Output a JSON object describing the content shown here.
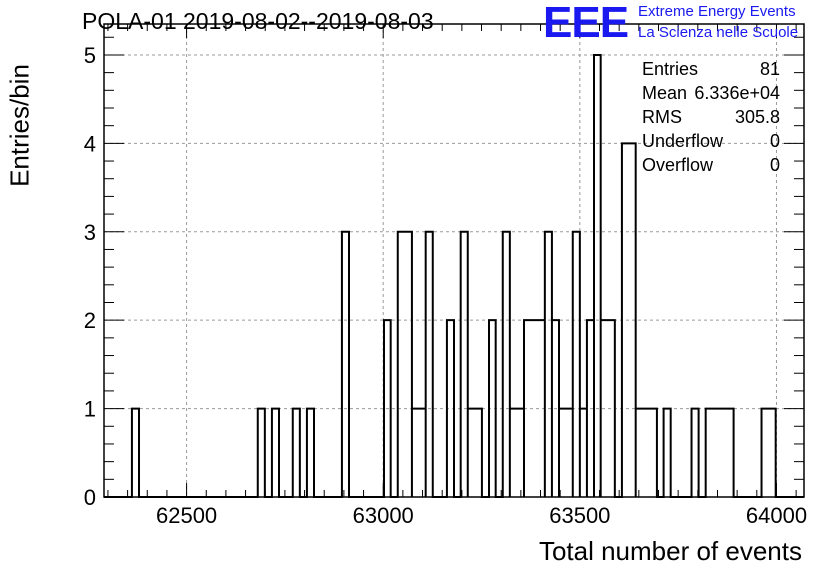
{
  "chart_data": {
    "type": "histogram",
    "title": "POLA-01 2019-08-02--2019-08-03",
    "xlabel": "Total number of events",
    "ylabel": "Entries/bin",
    "xlim": [
      62290,
      64070
    ],
    "ylim": [
      0,
      5.35
    ],
    "bin_width": 17.8,
    "x_ticks": [
      62500,
      63000,
      63500,
      64000
    ],
    "x_tick_labels": [
      "62500",
      "63000",
      "63500",
      "64000"
    ],
    "y_ticks": [
      0,
      1,
      2,
      3,
      4,
      5
    ],
    "y_tick_labels": [
      "0",
      "1",
      "2",
      "3",
      "4",
      "5"
    ],
    "grid": true,
    "bins": [
      {
        "x0": 62361,
        "x1": 62379,
        "count": 1
      },
      {
        "x0": 62681,
        "x1": 62699,
        "count": 1
      },
      {
        "x0": 62717,
        "x1": 62735,
        "count": 1
      },
      {
        "x0": 62770,
        "x1": 62788,
        "count": 1
      },
      {
        "x0": 62806,
        "x1": 62824,
        "count": 1
      },
      {
        "x0": 62895,
        "x1": 62913,
        "count": 3
      },
      {
        "x0": 63002,
        "x1": 63019,
        "count": 2
      },
      {
        "x0": 63037,
        "x1": 63073,
        "count": 3
      },
      {
        "x0": 63073,
        "x1": 63108,
        "count": 1
      },
      {
        "x0": 63108,
        "x1": 63126,
        "count": 3
      },
      {
        "x0": 63162,
        "x1": 63180,
        "count": 2
      },
      {
        "x0": 63197,
        "x1": 63215,
        "count": 3
      },
      {
        "x0": 63215,
        "x1": 63251,
        "count": 1
      },
      {
        "x0": 63269,
        "x1": 63286,
        "count": 2
      },
      {
        "x0": 63304,
        "x1": 63322,
        "count": 3
      },
      {
        "x0": 63322,
        "x1": 63358,
        "count": 1
      },
      {
        "x0": 63358,
        "x1": 63411,
        "count": 2
      },
      {
        "x0": 63411,
        "x1": 63429,
        "count": 3
      },
      {
        "x0": 63429,
        "x1": 63447,
        "count": 2
      },
      {
        "x0": 63447,
        "x1": 63482,
        "count": 1
      },
      {
        "x0": 63482,
        "x1": 63500,
        "count": 3
      },
      {
        "x0": 63500,
        "x1": 63518,
        "count": 1
      },
      {
        "x0": 63518,
        "x1": 63536,
        "count": 2
      },
      {
        "x0": 63536,
        "x1": 63553,
        "count": 5
      },
      {
        "x0": 63553,
        "x1": 63589,
        "count": 2
      },
      {
        "x0": 63607,
        "x1": 63642,
        "count": 4
      },
      {
        "x0": 63642,
        "x1": 63696,
        "count": 1
      },
      {
        "x0": 63713,
        "x1": 63731,
        "count": 1
      },
      {
        "x0": 63784,
        "x1": 63802,
        "count": 1
      },
      {
        "x0": 63820,
        "x1": 63891,
        "count": 1
      },
      {
        "x0": 63962,
        "x1": 63998,
        "count": 1
      }
    ]
  },
  "logo": {
    "mark": "EEE",
    "line1": "Extreme Energy Events",
    "line2": "La Scienza nelle Scuole",
    "color": "#1a1af0"
  },
  "stats": [
    {
      "label": "Entries",
      "value": "81"
    },
    {
      "label": "Mean",
      "value": "6.336e+04"
    },
    {
      "label": "RMS",
      "value": "305.8"
    },
    {
      "label": "Underflow",
      "value": "0"
    },
    {
      "label": "Overflow",
      "value": "0"
    }
  ]
}
